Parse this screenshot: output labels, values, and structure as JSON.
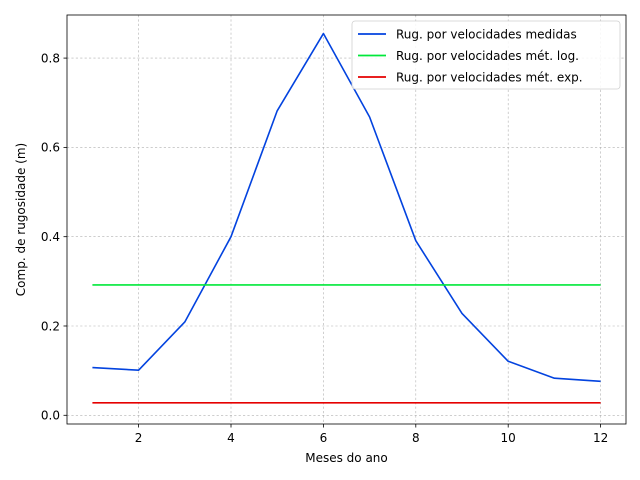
{
  "chart_data": {
    "type": "line",
    "title": "",
    "xlabel": "Meses do ano",
    "ylabel": "Comp. de rugosidade (m)",
    "xlim": [
      0.45,
      12.55
    ],
    "ylim": [
      -0.0195,
      0.8965
    ],
    "x_ticks": [
      2,
      4,
      6,
      8,
      10,
      12
    ],
    "x_tick_labels": [
      "2",
      "4",
      "6",
      "8",
      "10",
      "12"
    ],
    "y_ticks": [
      0.0,
      0.2,
      0.4,
      0.6,
      0.8
    ],
    "y_tick_labels": [
      "0.0",
      "0.2",
      "0.4",
      "0.6",
      "0.8"
    ],
    "grid": true,
    "legend_position": "top-right",
    "x": [
      1,
      2,
      3,
      4,
      5,
      6,
      7,
      8,
      9,
      10,
      11,
      12
    ],
    "series": [
      {
        "name": "Rug. por velocidades medidas",
        "color": "#0343df",
        "values": [
          0.107,
          0.101,
          0.209,
          0.4,
          0.682,
          0.855,
          0.668,
          0.391,
          0.228,
          0.121,
          0.083,
          0.076
        ]
      },
      {
        "name": "Rug. por velocidades mét. log.",
        "color": "#00e83a",
        "values": [
          0.292,
          0.292,
          0.292,
          0.292,
          0.292,
          0.292,
          0.292,
          0.292,
          0.292,
          0.292,
          0.292,
          0.292
        ]
      },
      {
        "name": "Rug. por velocidades mét. exp.",
        "color": "#e50000",
        "values": [
          0.028,
          0.028,
          0.028,
          0.028,
          0.028,
          0.028,
          0.028,
          0.028,
          0.028,
          0.028,
          0.028,
          0.028
        ]
      }
    ]
  }
}
